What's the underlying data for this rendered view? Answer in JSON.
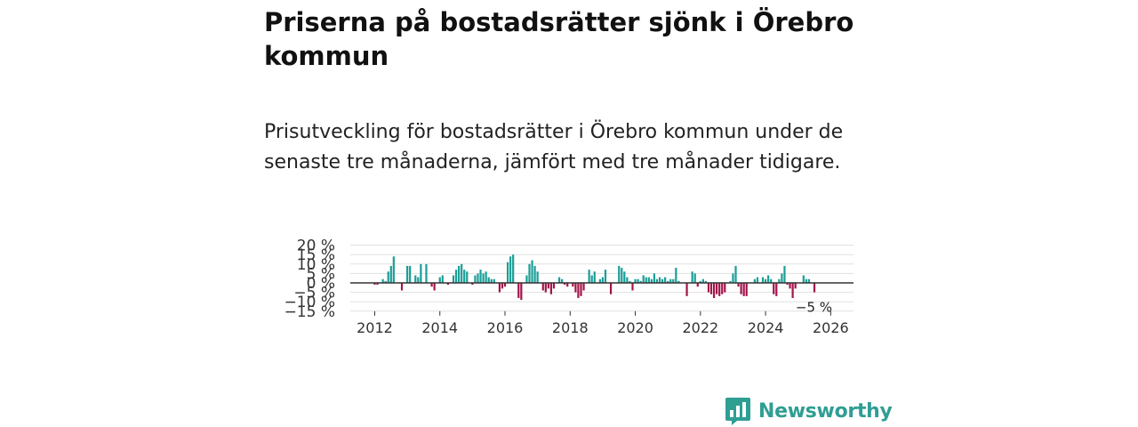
{
  "title": "Priserna på bostadsrätter sjönk i Örebro kommun",
  "subtitle": "Prisutveckling för bostadsrätter i Örebro kommun under de senaste tre månaderna, jämfört med tre månader tidigare.",
  "brand": {
    "name": "Newsworthy",
    "color": "#2f9e93",
    "icon": "newsworthy-logo-icon"
  },
  "colors": {
    "positive": "#1a9e97",
    "negative": "#a3154a",
    "grid": "#e1e1e1",
    "zero": "#333333"
  },
  "chart_data": {
    "type": "bar",
    "title": "Priserna på bostadsrätter sjönk i Örebro kommun",
    "xlabel": "",
    "ylabel": "",
    "ylim": [
      -15,
      20
    ],
    "xlim": [
      2011.25,
      2026.7
    ],
    "y_ticks": [
      -15,
      -10,
      -5,
      0,
      5,
      10,
      15,
      20
    ],
    "y_tick_labels": [
      "−15 %",
      "−10 %",
      "−5 %",
      "0 %",
      "5 %",
      "10 %",
      "15 %",
      "20 %"
    ],
    "x_ticks": [
      2012,
      2014,
      2016,
      2018,
      2020,
      2022,
      2024,
      2026
    ],
    "x_tick_labels": [
      "2012",
      "2014",
      "2016",
      "2018",
      "2020",
      "2022",
      "2024",
      "2026"
    ],
    "grid": true,
    "last_value_label": "−5 %",
    "series": [
      {
        "name": "Prisutveckling",
        "start": [
          2012,
          1
        ],
        "values": [
          -1,
          -1,
          0,
          2,
          1,
          6,
          9,
          14,
          0,
          0,
          -4,
          0,
          9,
          9,
          0,
          4,
          3,
          10,
          0,
          10,
          0,
          -2,
          -4,
          0,
          3,
          4,
          0,
          -1,
          0,
          4,
          7,
          9,
          10,
          7,
          6,
          0,
          -1,
          4,
          5,
          7,
          5,
          6,
          3,
          2,
          2,
          0,
          -5,
          -3,
          -2,
          11,
          14,
          15,
          0,
          -8,
          -9,
          0,
          4,
          10,
          12,
          9,
          6,
          0,
          -4,
          -5,
          -3,
          -6,
          -3,
          0,
          3,
          2,
          -1,
          -2,
          0,
          -2,
          -5,
          -8,
          -7,
          -4,
          0,
          7,
          4,
          6,
          0,
          2,
          3,
          7,
          0,
          -6,
          0,
          0,
          9,
          8,
          6,
          3,
          1,
          -4,
          2,
          2,
          1,
          4,
          3,
          3,
          2,
          5,
          2,
          3,
          2,
          3,
          1,
          2,
          2,
          8,
          1,
          0,
          0,
          -7,
          0,
          6,
          5,
          -2,
          1,
          2,
          1,
          -5,
          -6,
          -8,
          -6,
          -7,
          -6,
          -5,
          0,
          1,
          5,
          9,
          -2,
          -6,
          -7,
          -7,
          0,
          0,
          2,
          3,
          0,
          3,
          2,
          4,
          2,
          -6,
          -7,
          2,
          5,
          9,
          -1,
          -3,
          -8,
          -3,
          0,
          0,
          4,
          2,
          2,
          0,
          -5
        ]
      }
    ]
  }
}
